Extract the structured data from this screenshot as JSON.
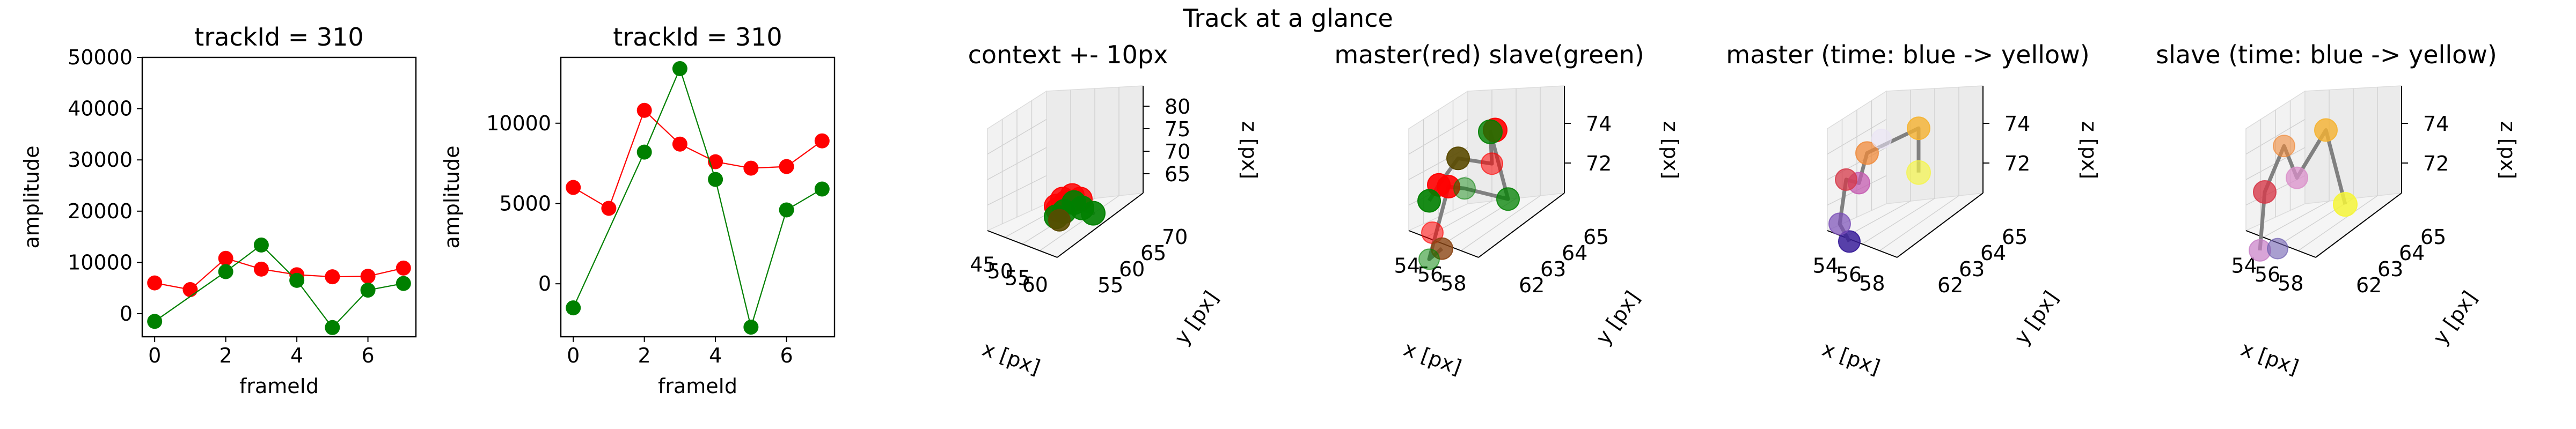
{
  "suptitle": "Track at a glance",
  "chart_data": [
    {
      "type": "line",
      "title": "trackId = 310",
      "xlabel": "frameId",
      "ylabel": "amplitude",
      "xlim": [
        -0.35,
        7.35
      ],
      "ylim": [
        -4500,
        50000
      ],
      "xticks": [
        0,
        2,
        4,
        6
      ],
      "yticks": [
        0,
        10000,
        20000,
        30000,
        40000,
        50000
      ],
      "series": [
        {
          "color": "#ff0000",
          "x": [
            0,
            1,
            2,
            3,
            4,
            5,
            6,
            7
          ],
          "y": [
            6000,
            4700,
            10800,
            8700,
            7600,
            7200,
            7300,
            8900
          ]
        },
        {
          "color": "#008000",
          "x": [
            0,
            2,
            3,
            4,
            5,
            6,
            7
          ],
          "y": [
            -1500,
            8200,
            13400,
            6500,
            -2700,
            4600,
            5900
          ]
        }
      ]
    },
    {
      "type": "line",
      "title": "trackId = 310",
      "xlabel": "frameId",
      "ylabel": "amplitude",
      "xlim": [
        -0.35,
        7.35
      ],
      "ylim": [
        -3300,
        14100
      ],
      "xticks": [
        0,
        2,
        4,
        6
      ],
      "yticks": [
        0,
        5000,
        10000
      ],
      "series": [
        {
          "color": "#ff0000",
          "x": [
            0,
            1,
            2,
            3,
            4,
            5,
            6,
            7
          ],
          "y": [
            6000,
            4700,
            10800,
            8700,
            7600,
            7200,
            7300,
            8900
          ]
        },
        {
          "color": "#008000",
          "x": [
            0,
            2,
            3,
            4,
            5,
            6,
            7
          ],
          "y": [
            -1500,
            8200,
            13400,
            6500,
            -2700,
            4600,
            5900
          ]
        }
      ]
    },
    {
      "type": "scatter3d",
      "title": "context +- 10px",
      "xlabel": "x [px]",
      "ylabel": "y [px]",
      "zlabel": "z [px]",
      "xticks": [
        "45",
        "50",
        "55",
        "60"
      ],
      "yticks": [
        "55",
        "60",
        "65",
        "70"
      ],
      "zticks": [
        "65",
        "70",
        "75",
        "80"
      ],
      "points": [
        {
          "color": "#ff0000",
          "opacity": 0.85
        },
        {
          "color": "#ff0000",
          "opacity": 0.85
        },
        {
          "color": "#ff0000",
          "opacity": 0.85
        },
        {
          "color": "#ff0000",
          "opacity": 0.85
        },
        {
          "color": "#ff0000",
          "opacity": 0.85
        },
        {
          "color": "#ff0000",
          "opacity": 0.85
        },
        {
          "color": "#008000",
          "opacity": 0.9
        },
        {
          "color": "#008000",
          "opacity": 0.9
        },
        {
          "color": "#008000",
          "opacity": 0.9
        },
        {
          "color": "#008000",
          "opacity": 0.9
        },
        {
          "color": "#008000",
          "opacity": 0.9
        },
        {
          "color": "#5a4a00",
          "opacity": 0.9
        }
      ]
    },
    {
      "type": "scatter3d",
      "title": "master(red) slave(green)",
      "xlabel": "x [px]",
      "ylabel": "y [px]",
      "zlabel": "z [px]",
      "xticks": [
        "54",
        "56",
        "58"
      ],
      "yticks": [
        "62",
        "63",
        "64",
        "65"
      ],
      "zticks": [
        "72",
        "74"
      ],
      "points": [
        {
          "color": "#ff0000",
          "opacity": 0.55
        },
        {
          "color": "#ff0000",
          "opacity": 0.9
        },
        {
          "color": "#ff0000",
          "opacity": 0.9
        },
        {
          "color": "#ff0000",
          "opacity": 0.55
        },
        {
          "color": "#ff0000",
          "opacity": 0.9
        },
        {
          "color": "#8b4513",
          "opacity": 0.8
        },
        {
          "color": "#5a4a00",
          "opacity": 0.9
        },
        {
          "color": "#008000",
          "opacity": 0.5
        },
        {
          "color": "#008000",
          "opacity": 0.9
        },
        {
          "color": "#008000",
          "opacity": 0.45
        },
        {
          "color": "#008000",
          "opacity": 0.8
        },
        {
          "color": "#008000",
          "opacity": 0.75
        }
      ]
    },
    {
      "type": "scatter3d",
      "title": "master (time: blue -> yellow)",
      "xlabel": "x [px]",
      "ylabel": "y [px]",
      "zlabel": "z [px]",
      "xticks": [
        "54",
        "56",
        "58"
      ],
      "yticks": [
        "62",
        "63",
        "64",
        "65"
      ],
      "zticks": [
        "72",
        "74"
      ],
      "points": [
        {
          "color": "#3a1f9a",
          "opacity": 0.85
        },
        {
          "color": "#7a4fb8",
          "opacity": 0.7
        },
        {
          "color": "#c45bb0",
          "opacity": 0.75
        },
        {
          "color": "#d63a4a",
          "opacity": 0.75
        },
        {
          "color": "#f08a3a",
          "opacity": 0.75
        },
        {
          "color": "#f5b230",
          "opacity": 0.8
        },
        {
          "color": "#f5f54a",
          "opacity": 0.7
        },
        {
          "color": "#e9e2f5",
          "opacity": 0.6
        }
      ]
    },
    {
      "type": "scatter3d",
      "title": "slave (time: blue -> yellow)",
      "xlabel": "x [px]",
      "ylabel": "y [px]",
      "zlabel": "z [px]",
      "xticks": [
        "54",
        "56",
        "58"
      ],
      "yticks": [
        "62",
        "63",
        "64",
        "65"
      ],
      "zticks": [
        "72",
        "74"
      ],
      "points": [
        {
          "color": "#c77ec6",
          "opacity": 0.7
        },
        {
          "color": "#6f5fb0",
          "opacity": 0.6
        },
        {
          "color": "#d63a4a",
          "opacity": 0.8
        },
        {
          "color": "#d98fc9",
          "opacity": 0.75
        },
        {
          "color": "#f08a3a",
          "opacity": 0.6
        },
        {
          "color": "#f5b230",
          "opacity": 0.8
        },
        {
          "color": "#f5f53a",
          "opacity": 0.85
        }
      ]
    }
  ]
}
